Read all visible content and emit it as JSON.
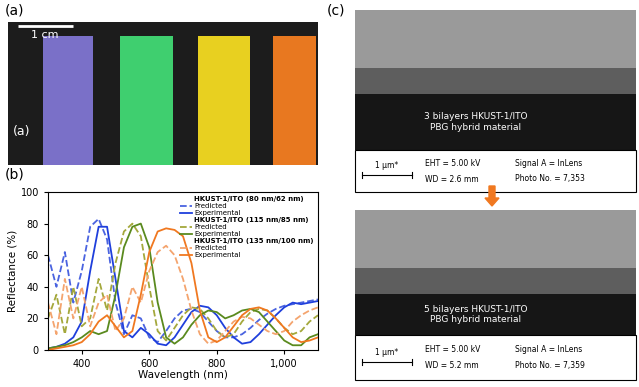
{
  "panel_labels": [
    "(a)",
    "(b)",
    "(c)"
  ],
  "photo": {
    "label": "(a)",
    "scale_bar": "1 cm"
  },
  "chart_data": {
    "type": "line",
    "x_label": "Wavelength (nm)",
    "y_label": "Reflectance (%)",
    "x": [
      300,
      325,
      350,
      375,
      400,
      425,
      450,
      475,
      500,
      525,
      550,
      575,
      600,
      625,
      650,
      675,
      700,
      725,
      750,
      775,
      800,
      825,
      850,
      875,
      900,
      925,
      950,
      975,
      1000,
      1025,
      1050,
      1075,
      1100
    ],
    "xlim": [
      300,
      1100
    ],
    "xticks": [
      400,
      600,
      800,
      {
        "value": 1000,
        "label": "1,000"
      }
    ],
    "ylim": [
      0,
      100
    ],
    "yticks": [
      0,
      20,
      40,
      60,
      80,
      100
    ],
    "legend": "upper right",
    "series": [
      {
        "group": "HKUST-1/ITO (80 nm/62 nm)",
        "name": "Predicted",
        "color": "#4a63e0",
        "line_style": "dashed",
        "values": [
          60,
          40,
          62,
          30,
          50,
          78,
          83,
          70,
          30,
          10,
          22,
          20,
          8,
          5,
          12,
          20,
          25,
          26,
          24,
          18,
          12,
          8,
          8,
          10,
          14,
          19,
          23,
          26,
          28,
          29,
          30,
          31,
          32
        ]
      },
      {
        "group": "HKUST-1/ITO (80 nm/62 nm)",
        "name": "Experimental",
        "color": "#1f3fdc",
        "line_style": "solid",
        "values": [
          1,
          2,
          4,
          8,
          18,
          50,
          78,
          78,
          45,
          12,
          8,
          14,
          10,
          4,
          3,
          8,
          16,
          24,
          28,
          27,
          22,
          14,
          8,
          4,
          5,
          10,
          16,
          22,
          27,
          30,
          29,
          30,
          31
        ]
      },
      {
        "group": "HKUST-1/ITO (115 nm/85 nm)",
        "name": "Predicted",
        "color": "#a4a83c",
        "line_style": "dashed",
        "values": [
          20,
          35,
          10,
          40,
          15,
          20,
          45,
          25,
          55,
          75,
          80,
          72,
          40,
          12,
          6,
          14,
          22,
          27,
          26,
          20,
          12,
          8,
          10,
          18,
          24,
          26,
          25,
          20,
          14,
          10,
          12,
          18,
          22
        ]
      },
      {
        "group": "HKUST-1/ITO (115 nm/85 nm)",
        "name": "Experimental",
        "color": "#5a8a1e",
        "line_style": "solid",
        "values": [
          1,
          2,
          3,
          5,
          8,
          12,
          10,
          12,
          35,
          65,
          78,
          80,
          65,
          30,
          8,
          4,
          8,
          16,
          22,
          25,
          24,
          20,
          22,
          25,
          26,
          24,
          18,
          12,
          6,
          3,
          3,
          8,
          10
        ]
      },
      {
        "group": "HKUST-1/ITO (135 nm/100 nm)",
        "name": "Predicted",
        "color": "#f4a46e",
        "line_style": "dashed",
        "values": [
          30,
          10,
          45,
          20,
          40,
          15,
          30,
          35,
          12,
          20,
          40,
          30,
          50,
          62,
          66,
          60,
          45,
          25,
          10,
          4,
          6,
          12,
          18,
          21,
          20,
          16,
          12,
          10,
          12,
          18,
          22,
          25,
          27
        ]
      },
      {
        "group": "HKUST-1/ITO (135 nm/100 nm)",
        "name": "Experimental",
        "color": "#f07820",
        "line_style": "solid",
        "values": [
          0,
          1,
          2,
          3,
          5,
          10,
          18,
          22,
          15,
          8,
          12,
          35,
          62,
          75,
          77,
          76,
          72,
          55,
          25,
          8,
          5,
          8,
          15,
          22,
          26,
          27,
          25,
          20,
          14,
          8,
          5,
          6,
          8
        ]
      }
    ]
  },
  "sem_images": [
    {
      "caption": "3 bilayers HKUST-1/ITO\nPBG hybrid material",
      "scale_bar": "1 µm*",
      "info": [
        "EHT = 5.00 kV",
        "WD = 2.6 mm",
        "Signal A = InLens",
        "Photo No. = 7,353"
      ]
    },
    {
      "caption": "5 bilayers HKUST-1/ITO\nPBG hybrid material",
      "scale_bar": "1 µm*",
      "info": [
        "EHT = 5.00 kV",
        "WD = 5.2 mm",
        "Signal A = InLens",
        "Photo No. = 7,359"
      ]
    }
  ]
}
